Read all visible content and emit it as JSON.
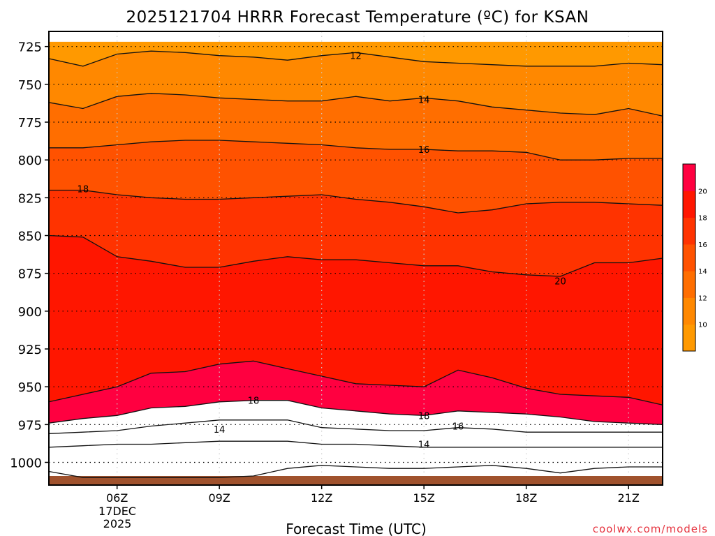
{
  "chart_data": {
    "type": "heatmap",
    "title": "2025121704 HRRR Forecast Temperature (ºC) for KSAN",
    "xlabel": "Forecast Time (UTC)",
    "ylabel": "",
    "x_ticks": [
      "06Z",
      "09Z",
      "12Z",
      "15Z",
      "18Z",
      "21Z"
    ],
    "x_date_lines": [
      "17DEC",
      "2025"
    ],
    "x_hours": [
      4,
      5,
      6,
      7,
      8,
      9,
      10,
      11,
      12,
      13,
      14,
      15,
      16,
      17,
      18,
      19,
      20,
      21,
      22
    ],
    "xlim": [
      4,
      22
    ],
    "y_ticks": [
      725,
      750,
      775,
      800,
      825,
      850,
      875,
      900,
      925,
      950,
      975,
      1000
    ],
    "ylim": [
      1015,
      715
    ],
    "grid": true,
    "levels": [
      8,
      10,
      12,
      14,
      16,
      18,
      20
    ],
    "colorbar_labels": [
      "10",
      "12",
      "14",
      "16",
      "18",
      "20"
    ],
    "colors": [
      "#ff9900",
      "#ff8800",
      "#ff6e00",
      "#ff5200",
      "#ff3300",
      "#ff1600",
      "#ff0040"
    ],
    "ground_color": "#a0522d",
    "ground_top": 1009,
    "boundaries": [
      [
        722,
        722,
        722,
        722,
        722,
        722,
        722,
        722,
        722,
        722,
        722,
        722,
        722,
        722,
        722,
        722,
        722,
        722,
        722
      ],
      [
        733,
        738,
        730,
        728,
        729,
        731,
        732,
        734,
        731,
        729,
        732,
        735,
        736,
        737,
        738,
        738,
        738,
        736,
        737
      ],
      [
        762,
        766,
        758,
        756,
        757,
        759,
        760,
        761,
        761,
        758,
        761,
        759,
        761,
        765,
        767,
        769,
        770,
        766,
        771
      ],
      [
        792,
        792,
        790,
        788,
        787,
        787,
        788,
        789,
        790,
        792,
        793,
        793,
        794,
        794,
        795,
        800,
        800,
        799,
        799
      ],
      [
        820,
        820,
        823,
        825,
        826,
        826,
        825,
        824,
        823,
        826,
        828,
        831,
        835,
        833,
        829,
        828,
        828,
        829,
        830
      ],
      [
        850,
        851,
        864,
        867,
        871,
        871,
        867,
        864,
        866,
        866,
        868,
        870,
        870,
        874,
        876,
        877,
        868,
        868,
        865
      ],
      [
        960,
        955,
        950,
        941,
        940,
        935,
        933,
        938,
        943,
        948,
        949,
        950,
        939,
        944,
        951,
        955,
        956,
        957,
        962
      ],
      [
        974,
        971,
        969,
        964,
        963,
        960,
        959,
        959,
        964,
        966,
        968,
        969,
        966,
        967,
        968,
        970,
        973,
        974,
        975
      ],
      [
        981,
        980,
        979,
        976,
        974,
        972,
        972,
        972,
        977,
        978,
        979,
        979,
        977,
        978,
        980,
        980,
        980,
        980,
        980
      ],
      [
        990,
        989,
        988,
        988,
        987,
        986,
        986,
        986,
        988,
        988,
        989,
        990,
        990,
        990,
        990,
        990,
        990,
        990,
        990
      ],
      [
        1006,
        1010,
        1010,
        1010,
        1010,
        1010,
        1009,
        1004,
        1002,
        1003,
        1004,
        1004,
        1003,
        1002,
        1004,
        1007,
        1004,
        1003,
        1003
      ],
      [
        1010,
        1010,
        1010,
        1010,
        1010,
        1010,
        1010,
        1010,
        1010,
        1010,
        1010,
        1010,
        1010,
        1010,
        1010,
        1010,
        1010,
        1010,
        1010
      ],
      [
        1010,
        1010,
        1010,
        1010,
        1010,
        1010,
        1010,
        1010,
        1010,
        1010,
        1010,
        1010,
        1010,
        1010,
        1010,
        1010,
        1010,
        1010,
        1010
      ]
    ],
    "contour_labels": [
      {
        "text": "12",
        "x": 13.0,
        "y": 731
      },
      {
        "text": "14",
        "x": 15.0,
        "y": 760
      },
      {
        "text": "16",
        "x": 15.0,
        "y": 793
      },
      {
        "text": "18",
        "x": 5.0,
        "y": 819
      },
      {
        "text": "20",
        "x": 19.0,
        "y": 880
      },
      {
        "text": "18",
        "x": 10.0,
        "y": 959
      },
      {
        "text": "18",
        "x": 15.0,
        "y": 969
      },
      {
        "text": "16",
        "x": 16.0,
        "y": 976
      },
      {
        "text": "14",
        "x": 9.0,
        "y": 978
      },
      {
        "text": "14",
        "x": 15.0,
        "y": 988
      }
    ]
  },
  "footer": {
    "source": "coolwx.com/models",
    "source_color": "#e6333f"
  }
}
